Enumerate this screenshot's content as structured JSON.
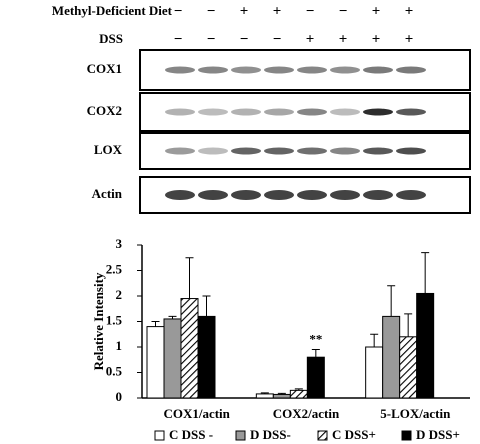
{
  "blot": {
    "rows": [
      {
        "label": "Methyl-Deficient Diet",
        "signs": [
          "−",
          "−",
          "+",
          "+",
          "−",
          "−",
          "+",
          "+"
        ]
      },
      {
        "label": "DSS",
        "signs": [
          "−",
          "−",
          "−",
          "−",
          "+",
          "+",
          "+",
          "+"
        ]
      }
    ],
    "bands": [
      "COX1",
      "COX2",
      "LOX",
      "Actin"
    ]
  },
  "chart_data": {
    "type": "bar",
    "y_label": "Relative Intensity",
    "categories": [
      "COX1/actin",
      "COX2/actin",
      "5-LOX/actin"
    ],
    "ylim": [
      0,
      3
    ],
    "yticks": [
      0,
      0.5,
      1,
      1.5,
      2,
      2.5,
      3
    ],
    "series": [
      {
        "name": "C DSS  -",
        "color": "#ffffff",
        "values": [
          1.4,
          0.08,
          1.0
        ],
        "errors": [
          0.1,
          0.02,
          0.25
        ]
      },
      {
        "name": "D DSS-",
        "color": "#999999",
        "values": [
          1.55,
          0.07,
          1.6
        ],
        "errors": [
          0.05,
          0.02,
          0.6
        ]
      },
      {
        "name": "C DSS+",
        "color": "#000000",
        "fill": "hatch",
        "values": [
          1.95,
          0.15,
          1.2
        ],
        "errors": [
          0.8,
          0.03,
          0.45
        ]
      },
      {
        "name": "D DSS+",
        "color": "#000000",
        "values": [
          1.6,
          0.8,
          2.05
        ],
        "errors": [
          0.4,
          0.15,
          0.8
        ]
      }
    ],
    "annotations": [
      {
        "text": "**",
        "category": 1,
        "series": 3
      }
    ]
  }
}
